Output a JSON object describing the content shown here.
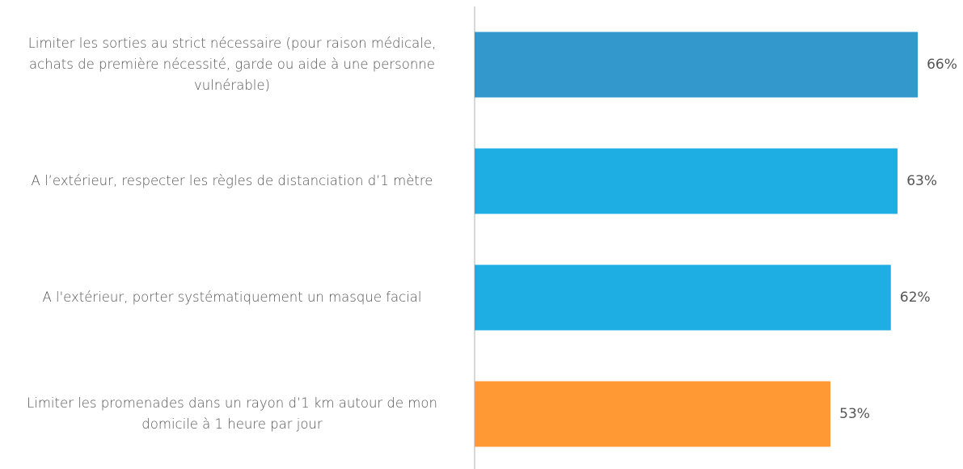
{
  "chart_data": {
    "type": "bar",
    "orientation": "horizontal",
    "categories": [
      "Limiter les sorties au strict nécessaire (pour raison médicale, achats de première nécessité, garde ou aide à une personne vulnérable)",
      "A l’extérieur, respecter les règles de distanciation d’1 mètre",
      "A l'extérieur, porter systématiquement un masque facial",
      "Limiter les promenades dans un rayon d’1 km autour de mon domicile à 1 heure par jour"
    ],
    "values": [
      66,
      63,
      62,
      53
    ],
    "value_labels": [
      "66%",
      "63%",
      "62%",
      "53%"
    ],
    "colors": [
      "#3399cc",
      "#1eaee3",
      "#1eaee3",
      "#ff9933"
    ]
  }
}
